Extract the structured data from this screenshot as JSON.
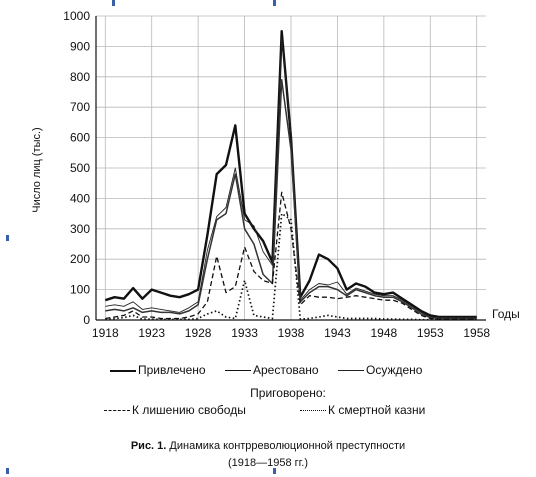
{
  "chart_data": {
    "type": "line",
    "ylabel": "Число лиц (тыс.)",
    "xlabel": "Годы",
    "xlim": [
      1917,
      1959
    ],
    "ylim": [
      0,
      1000
    ],
    "x_ticks": [
      1918,
      1923,
      1928,
      1933,
      1938,
      1943,
      1948,
      1953,
      1958
    ],
    "y_ticks": [
      0,
      100,
      200,
      300,
      400,
      500,
      600,
      700,
      800,
      900,
      1000
    ],
    "grid": true,
    "x": [
      1918,
      1919,
      1920,
      1921,
      1922,
      1923,
      1924,
      1925,
      1926,
      1927,
      1928,
      1929,
      1930,
      1931,
      1932,
      1933,
      1934,
      1935,
      1936,
      1937,
      1938,
      1939,
      1940,
      1941,
      1942,
      1943,
      1944,
      1945,
      1946,
      1947,
      1948,
      1949,
      1950,
      1951,
      1952,
      1953,
      1954,
      1955,
      1956,
      1957,
      1958
    ],
    "series": [
      {
        "name": "Привлечено",
        "style": "thick",
        "values": [
          65,
          75,
          70,
          105,
          70,
          100,
          90,
          80,
          75,
          85,
          100,
          280,
          480,
          510,
          640,
          350,
          300,
          260,
          190,
          950,
          600,
          75,
          130,
          215,
          200,
          170,
          100,
          120,
          110,
          90,
          85,
          90,
          70,
          50,
          30,
          15,
          10,
          10,
          10,
          10,
          10
        ]
      },
      {
        "name": "Арестовано",
        "style": "thin",
        "values": [
          45,
          50,
          45,
          60,
          35,
          40,
          35,
          30,
          25,
          40,
          60,
          230,
          340,
          370,
          500,
          330,
          310,
          225,
          180,
          925,
          620,
          65,
          100,
          120,
          115,
          125,
          85,
          105,
          95,
          85,
          80,
          80,
          65,
          45,
          25,
          10,
          8,
          8,
          8,
          8,
          8
        ]
      },
      {
        "name": "Осуждено",
        "style": "medium",
        "values": [
          30,
          35,
          30,
          40,
          25,
          30,
          25,
          25,
          20,
          30,
          50,
          200,
          330,
          350,
          480,
          300,
          250,
          150,
          120,
          790,
          560,
          60,
          90,
          110,
          110,
          100,
          80,
          100,
          90,
          80,
          75,
          75,
          60,
          40,
          20,
          8,
          5,
          5,
          5,
          5,
          5
        ]
      },
      {
        "name": "К лишению свободы",
        "style": "dashed",
        "values": [
          5,
          10,
          15,
          30,
          10,
          10,
          5,
          5,
          5,
          10,
          20,
          60,
          210,
          90,
          110,
          240,
          160,
          130,
          120,
          420,
          300,
          50,
          80,
          75,
          75,
          70,
          75,
          80,
          75,
          70,
          65,
          65,
          55,
          35,
          15,
          5,
          3,
          3,
          3,
          3,
          3
        ]
      },
      {
        "name": "К смертной казни",
        "style": "dotted",
        "values": [
          2,
          5,
          8,
          15,
          3,
          3,
          2,
          2,
          2,
          2,
          5,
          20,
          30,
          10,
          5,
          130,
          15,
          10,
          5,
          350,
          330,
          3,
          5,
          10,
          15,
          10,
          5,
          5,
          5,
          5,
          3,
          3,
          2,
          2,
          1,
          1,
          1,
          1,
          1,
          1,
          1
        ]
      }
    ]
  },
  "legend": {
    "privlecheno": "Привлечено",
    "arestovano": "Арестовано",
    "osuzhdeno": "Осуждено",
    "prigovoreno_header": "Приговорено:",
    "k_lisheniyu": "К лишению свободы",
    "k_smertnoy": "К смертной казни"
  },
  "caption": {
    "bold_part": "Рис. 1.",
    "title": "Динамика контрреволюционной преступности",
    "years": "(1918—1958 гг.)"
  }
}
